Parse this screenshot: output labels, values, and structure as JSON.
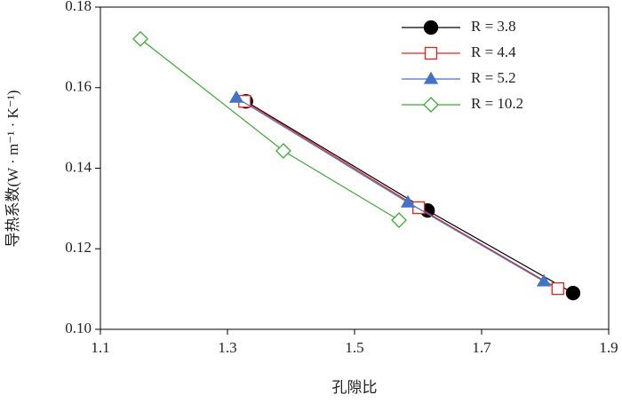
{
  "chart_data": {
    "type": "line",
    "xlabel": "孔隙比",
    "ylabel": "导热系数(W · m⁻¹ · K⁻¹)",
    "xlim": [
      1.1,
      1.9
    ],
    "xticks": [
      1.1,
      1.3,
      1.5,
      1.7,
      1.9
    ],
    "ylim": [
      0.1,
      0.18
    ],
    "yticks": [
      {
        "value": 0.1,
        "label": "0.10"
      },
      0.12,
      0.14,
      0.16,
      0.18
    ],
    "legend": "upper right",
    "series": [
      {
        "name": "R = 3.8",
        "color": "#000000",
        "marker": "circle",
        "x": [
          1.329,
          1.615,
          1.844
        ],
        "values": [
          0.1566,
          0.1295,
          0.109
        ]
      },
      {
        "name": "R = 4.4",
        "color": "#e8221b",
        "marker": "square",
        "x": [
          1.327,
          1.601,
          1.82
        ],
        "values": [
          0.1566,
          0.1302,
          0.1101
        ]
      },
      {
        "name": "R = 5.2",
        "color": "#4472c4",
        "marker": "triangle",
        "x": [
          1.314,
          1.584,
          1.798
        ],
        "values": [
          0.1575,
          0.1315,
          0.1119
        ]
      },
      {
        "name": "R = 10.2",
        "color": "#3aaa35",
        "marker": "diamond",
        "x": [
          1.163,
          1.388,
          1.57
        ],
        "values": [
          0.1721,
          0.1443,
          0.1271
        ]
      }
    ]
  }
}
